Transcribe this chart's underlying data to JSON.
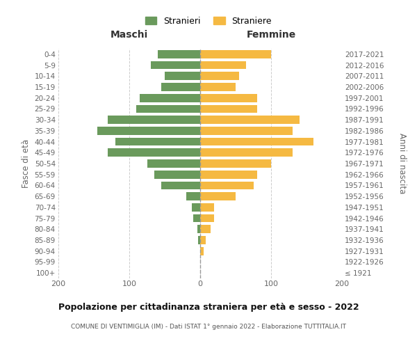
{
  "age_groups": [
    "100+",
    "95-99",
    "90-94",
    "85-89",
    "80-84",
    "75-79",
    "70-74",
    "65-69",
    "60-64",
    "55-59",
    "50-54",
    "45-49",
    "40-44",
    "35-39",
    "30-34",
    "25-29",
    "20-24",
    "15-19",
    "10-14",
    "5-9",
    "0-4"
  ],
  "birth_years": [
    "≤ 1921",
    "1922-1926",
    "1927-1931",
    "1932-1936",
    "1937-1941",
    "1942-1946",
    "1947-1951",
    "1952-1956",
    "1957-1961",
    "1962-1966",
    "1967-1971",
    "1972-1976",
    "1977-1981",
    "1982-1986",
    "1987-1991",
    "1992-1996",
    "1997-2001",
    "2002-2006",
    "2007-2011",
    "2012-2016",
    "2017-2021"
  ],
  "maschi": [
    0,
    0,
    0,
    3,
    4,
    10,
    12,
    20,
    55,
    65,
    75,
    130,
    120,
    145,
    130,
    90,
    85,
    55,
    50,
    70,
    60
  ],
  "femmine": [
    0,
    0,
    5,
    8,
    15,
    20,
    20,
    50,
    75,
    80,
    100,
    130,
    160,
    130,
    140,
    80,
    80,
    50,
    55,
    65,
    100
  ],
  "maschi_color": "#6a9a5c",
  "femmine_color": "#f5b942",
  "center_line_color": "#999999",
  "grid_color": "#cccccc",
  "background_color": "#ffffff",
  "title": "Popolazione per cittadinanza straniera per età e sesso - 2022",
  "subtitle": "COMUNE DI VENTIMIGLIA (IM) - Dati ISTAT 1° gennaio 2022 - Elaborazione TUTTITALIA.IT",
  "header_left": "Maschi",
  "header_right": "Femmine",
  "ylabel_left": "Fasce di età",
  "ylabel_right": "Anni di nascita",
  "legend_maschi": "Stranieri",
  "legend_femmine": "Straniere",
  "xlim": 200,
  "bar_height": 0.75
}
